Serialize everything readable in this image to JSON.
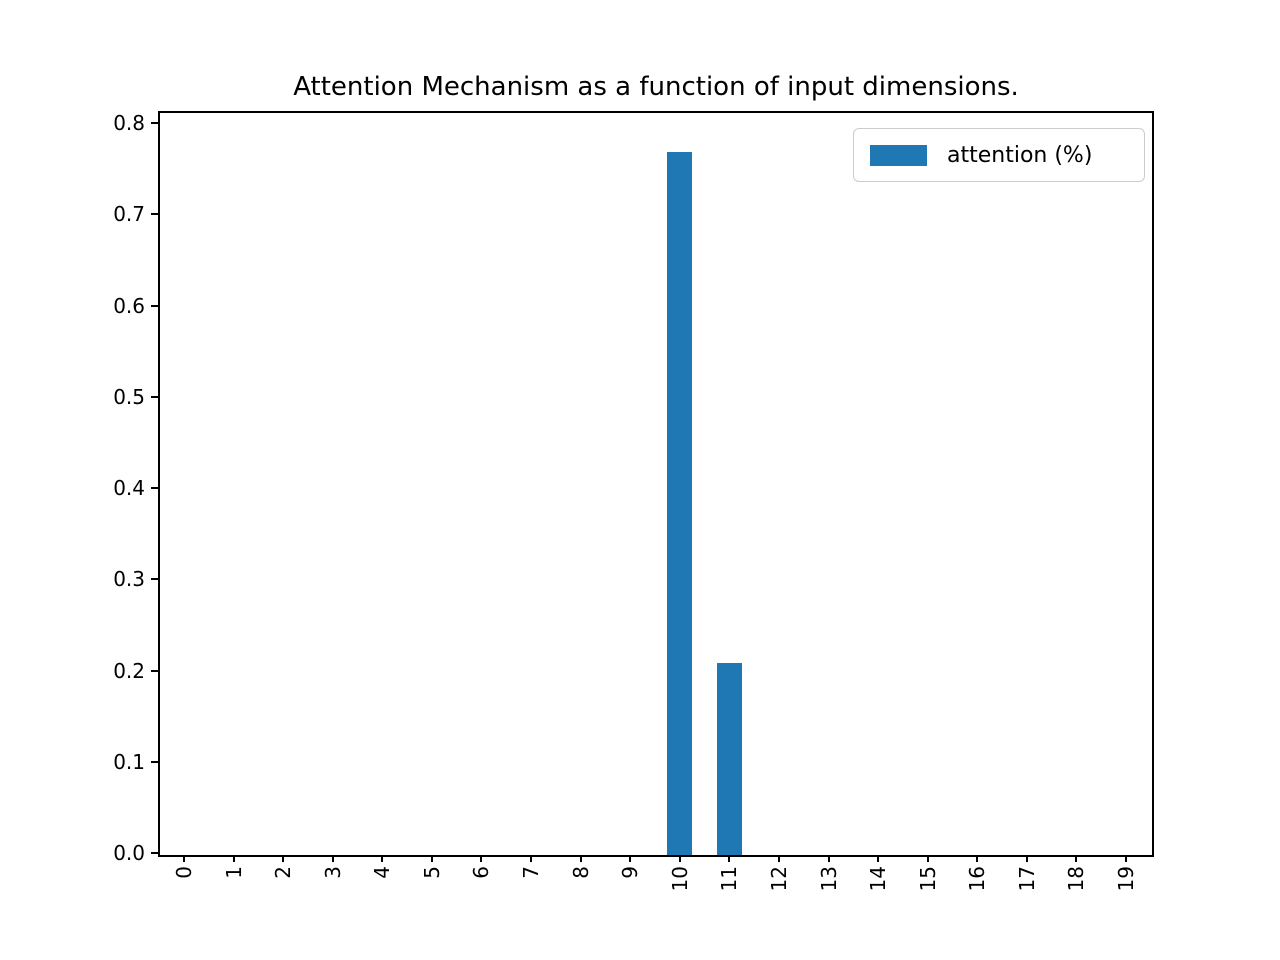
{
  "chart_data": {
    "type": "bar",
    "title": "Attention Mechanism as a function of input dimensions.",
    "categories": [
      "0",
      "1",
      "2",
      "3",
      "4",
      "5",
      "6",
      "7",
      "8",
      "9",
      "10",
      "11",
      "12",
      "13",
      "14",
      "15",
      "16",
      "17",
      "18",
      "19"
    ],
    "series": [
      {
        "name": "attention (%)",
        "values": [
          0,
          0,
          0,
          0,
          0,
          0,
          0,
          0,
          0,
          0,
          0.77,
          0.21,
          0,
          0,
          0,
          0,
          0,
          0,
          0,
          0
        ]
      }
    ],
    "xlabel": "",
    "ylabel": "",
    "ylim": [
      0,
      0.811
    ],
    "yticks": [
      "0.0",
      "0.1",
      "0.2",
      "0.3",
      "0.4",
      "0.5",
      "0.6",
      "0.7",
      "0.8"
    ],
    "xtick_rotation": 90,
    "grid": false,
    "legend_position": "upper right",
    "bar_color": "#1f77b4",
    "axis_color": "#000000",
    "legend_border_color": "#cccccc"
  }
}
